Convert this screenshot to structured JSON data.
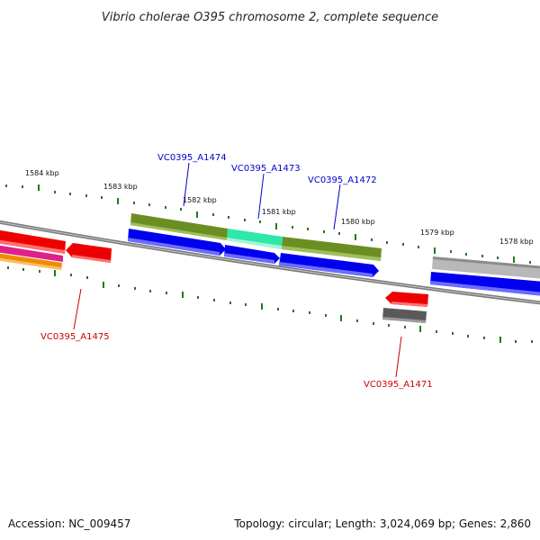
{
  "title": "Vibrio cholerae O395 chromosome 2, complete sequence",
  "footer": {
    "accession": "Accession: NC_009457",
    "topology": "Topology: circular; Length: 3,024,069 bp; Genes: 2,860"
  },
  "colors": {
    "backbone": "#7a7a7a",
    "tick": "#1f7a1f",
    "label_forward": "#0000cc",
    "label_reverse": "#cc0000",
    "leader_forward": "#0000cc",
    "leader_reverse": "#cc0000"
  },
  "ticks": [
    "1584 kbp",
    "1583 kbp",
    "1582 kbp",
    "1581 kbp",
    "1580 kbp",
    "1579 kbp",
    "1578 kbp"
  ],
  "gene_labels": {
    "a1474": "VC0395_A1474",
    "a1473": "VC0395_A1473",
    "a1472": "VC0395_A1472",
    "a1475": "VC0395_A1475",
    "a1471": "VC0395_A1471"
  }
}
